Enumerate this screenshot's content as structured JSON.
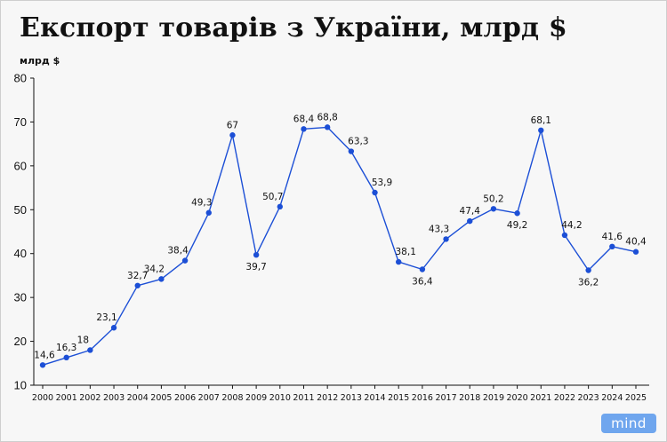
{
  "title": "Експорт товарів з України, млрд $",
  "unit_label": "млрд $",
  "logo": "mind",
  "colors": {
    "line": "#1c4fd6",
    "marker": "#1c4fd6",
    "axis": "#111111",
    "text": "#111111"
  },
  "chart_data": {
    "type": "line",
    "title": "Експорт товарів з України, млрд $",
    "ylabel": "млрд $",
    "xlabel": "",
    "ylim": [
      10,
      80
    ],
    "yticks": [
      10,
      20,
      30,
      40,
      50,
      60,
      70,
      80
    ],
    "grid": false,
    "x": [
      "2000",
      "2001",
      "2002",
      "2003",
      "2004",
      "2005",
      "2006",
      "2007",
      "2008",
      "2009",
      "2010",
      "2011",
      "2012",
      "2013",
      "2014",
      "2015",
      "2016",
      "2017",
      "2018",
      "2019",
      "2020",
      "2021",
      "2022",
      "2023",
      "2024",
      "2025"
    ],
    "series": [
      {
        "values": [
          14.6,
          16.3,
          18,
          23.1,
          32.7,
          34.2,
          38.4,
          49.3,
          67,
          39.7,
          50.7,
          68.4,
          68.8,
          63.3,
          53.9,
          38.1,
          36.4,
          43.3,
          47.4,
          50.2,
          49.2,
          68.1,
          44.2,
          36.2,
          41.6,
          40.4
        ],
        "labels": [
          "14,6",
          "16,3",
          "18",
          "23,1",
          "32,7",
          "34,2",
          "38,4",
          "49,3",
          "67",
          "39,7",
          "50,7",
          "68,4",
          "68,8",
          "63,3",
          "53,9",
          "38,1",
          "36,4",
          "43,3",
          "47,4",
          "50,2",
          "49,2",
          "68,1",
          "44,2",
          "36,2",
          "41,6",
          "40,4"
        ]
      }
    ]
  }
}
